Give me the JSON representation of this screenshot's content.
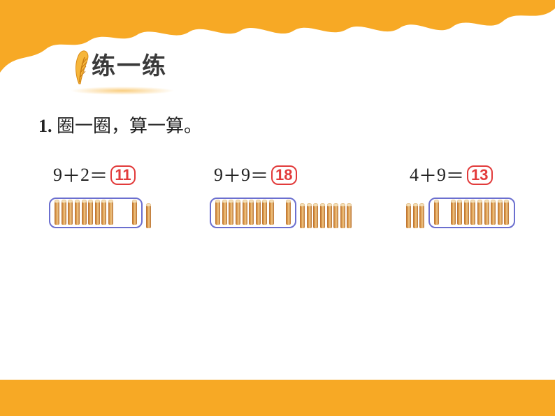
{
  "page_colors": {
    "orange": "#f7a925",
    "orange_dark": "#f59a12",
    "answer_border": "#e23b3b",
    "circle_border": "#6b6fcf",
    "text": "#222222",
    "stick_main": "#e7a95a",
    "stick_shadow": "#b86f2e"
  },
  "title": "练一练",
  "instruction": {
    "num": "1.",
    "text": " 圈一圈，算一算。"
  },
  "problems": [
    {
      "id": "p1",
      "a": 9,
      "op": "＋",
      "b": 2,
      "eq": "＝",
      "answer": 11,
      "circle": {
        "sticks_left": 9,
        "gap": "lg",
        "sticks_right": 1
      },
      "outside_after": 1
    },
    {
      "id": "p2",
      "a": 9,
      "op": "＋",
      "b": 9,
      "eq": "＝",
      "answer": 18,
      "circle": {
        "sticks_left": 9,
        "gap": "md",
        "sticks_right": 1
      },
      "outside_after": 8
    },
    {
      "id": "p3",
      "a": 4,
      "op": "＋",
      "b": 9,
      "eq": "＝",
      "answer": 13,
      "outside_before": 3,
      "circle": {
        "sticks_left": 1,
        "gap": "md",
        "sticks_right": 9
      }
    }
  ]
}
